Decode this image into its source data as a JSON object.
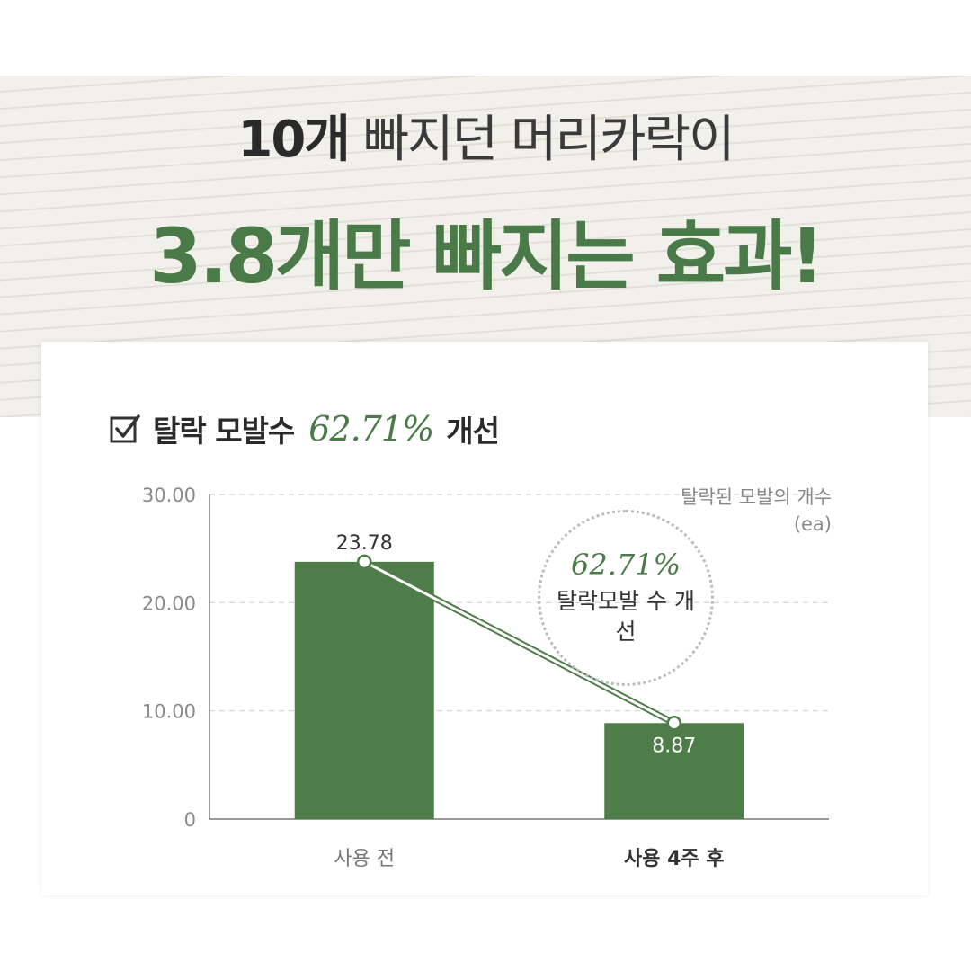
{
  "header": {
    "line1_strong": "10개",
    "line1_rest": "빠지던 머리카락이",
    "line2": "3.8개만 빠지는 효과!"
  },
  "card": {
    "title_prefix": "탈락 모발수",
    "title_value": "62.71%",
    "title_suffix": "개선",
    "callout_value": "62.71%",
    "callout_text": "탈락모발 수 개선"
  },
  "colors": {
    "accent": "#4a7a48",
    "bar": "#4f7d4a",
    "banner_bg": "#f1f0ea"
  },
  "chart_data": {
    "type": "bar",
    "categories": [
      "사용 전",
      "사용 4주 후"
    ],
    "values": [
      23.78,
      8.87
    ],
    "value_labels": [
      "23.78",
      "8.87"
    ],
    "ylabel": "탈락된 모발의 개수",
    "yunit": "(ea)",
    "ylim": [
      0,
      30
    ],
    "yticks": [
      "0",
      "10.00",
      "20.00",
      "30.00"
    ],
    "grid": true,
    "trend_line": true
  }
}
